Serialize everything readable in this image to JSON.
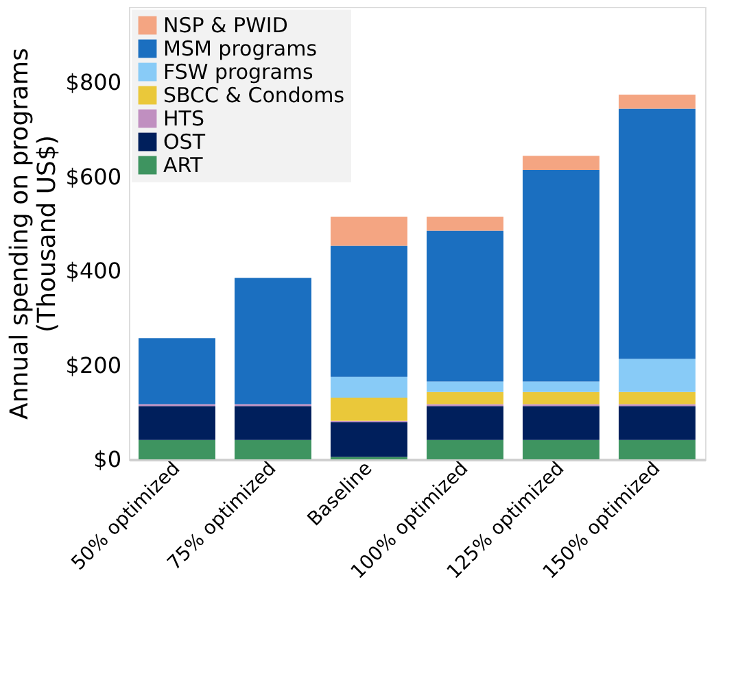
{
  "chart_data": {
    "type": "bar",
    "stacked": true,
    "ylabel": "Annual spending on programs\n(Thousand US$)",
    "categories": [
      "50% optimized",
      "75% optimized",
      "Baseline",
      "100% optimized",
      "125% optimized",
      "150% optimized"
    ],
    "series": [
      {
        "name": "ART",
        "color": "#3e9460",
        "values": [
          41,
          41,
          5,
          41,
          41,
          41
        ]
      },
      {
        "name": "OST",
        "color": "#001f5c",
        "values": [
          72,
          72,
          74,
          72,
          72,
          72
        ]
      },
      {
        "name": "HTS",
        "color": "#c08fc0",
        "values": [
          4,
          4,
          3,
          4,
          4,
          4
        ]
      },
      {
        "name": "SBCC & Condoms",
        "color": "#eac83a",
        "values": [
          0,
          0,
          49,
          26,
          26,
          26
        ]
      },
      {
        "name": "FSW programs",
        "color": "#88cbf7",
        "values": [
          0,
          0,
          44,
          22,
          22,
          70
        ]
      },
      {
        "name": "MSM programs",
        "color": "#1b6fc0",
        "values": [
          140,
          268,
          278,
          320,
          449,
          531
        ]
      },
      {
        "name": "NSP & PWID",
        "color": "#f4a582",
        "values": [
          0,
          0,
          62,
          30,
          30,
          30
        ]
      }
    ],
    "ylim": [
      0,
      960
    ],
    "yticks": [
      {
        "value": 0,
        "label": "$0"
      },
      {
        "value": 200,
        "label": "$200"
      },
      {
        "value": 400,
        "label": "$400"
      },
      {
        "value": 600,
        "label": "$600"
      },
      {
        "value": 800,
        "label": "$800"
      }
    ],
    "grid": false,
    "legend": "top left"
  }
}
